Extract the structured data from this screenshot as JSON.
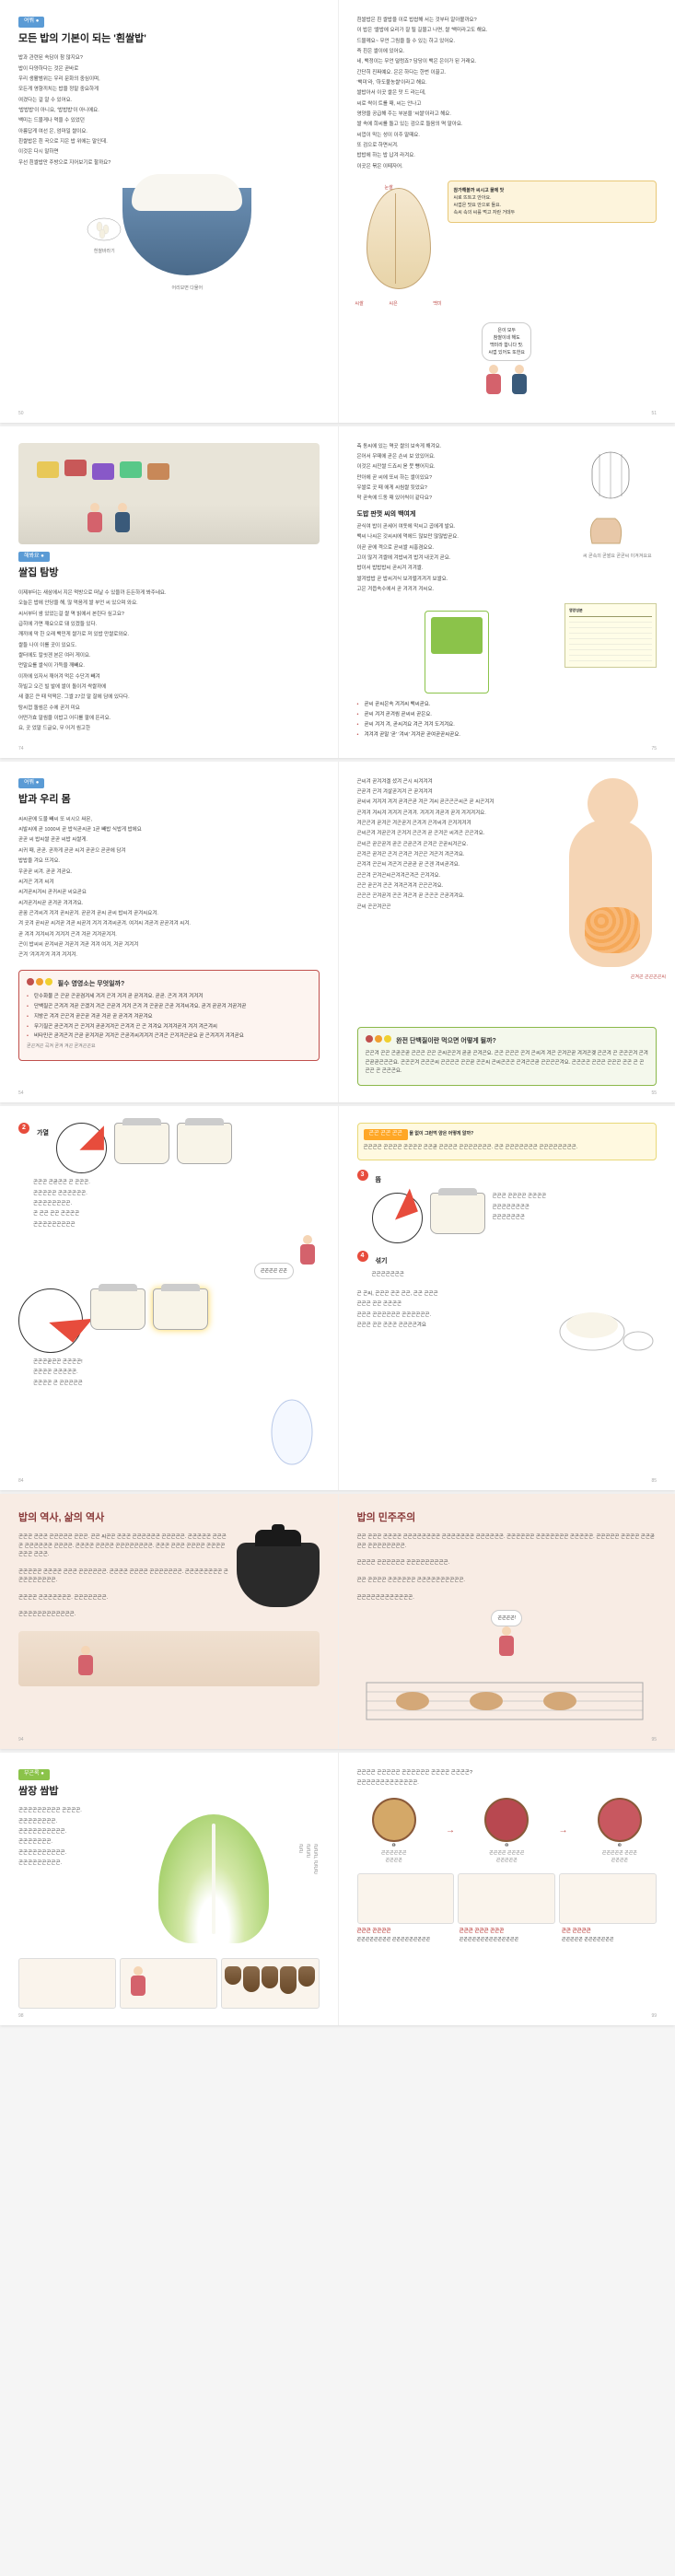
{
  "spread1": {
    "left": {
      "tag": "여쭤 ●",
      "title": "모든 밥의 기본이 되는 '흰쌀밥'",
      "lines": [
        "밥과 관련된 속담이 참 많지요?",
        "밥이 다양하다는 것은 곧바로",
        "우리 생활범위는 우리 문화의 중심이며,",
        "모든게 영향끼치는 밥을 정말 중요하게",
        "여겼다는 걸 알 수 있어요.",
        "'밥밥밥'이 아니요, '밥밥밥'이 아니에요.",
        "백미는 드물게나 먹을 수 있었던",
        "아름답게 여선 은, 엄마일 쌀이요.",
        "흰쌀밥은 흰 곡으로 지은 밥 위에는 말인데.",
        "이것은 다시 말하면",
        "우선 흰쌀밥만 주방으로 지어보기로 할까요?"
      ],
      "small_label_left": "흰쌀바라기",
      "small_label_right": "어리보면 다물어",
      "pg": "50"
    },
    "right": {
      "lines": [
        "흰쌀밥은 흰 쌀밥을 이로 밥쌉해 서는 것부터 알아볼까요?",
        "이 밥은 '쌀밥에 요리가 잘 될 길물고 나면, 쌀 '백미라고도 해요.",
        "드물께요~ 무언 그림을 들 수 있는 하고 있어요.",
        "즉 흰은 쌀이에 있어요.",
        "네, 백정이는 무언 덜렁죠? 담당이 백은 은이가 된 거래요.",
        "간단히 진짜예요. 은은 하다는 한번 이끌고.",
        "'백미'라, '하도불농쌀'이라고 해요.",
        "",
        "쌀밥아서 이곳 쌀은 맛 드 라는데,",
        "씨로 싹이 트를 때, 씨는 안나고",
        "영양을 공급해 주는 부분을 '씨쌀'이라고 해요.",
        "쌀 속에 희씨를 돌고 있는 검으로 들음의 멱 말아요.",
        "씨껍이 막는 성이 이주 말때요.",
        "또 검으로 하면서겨.",
        "밥밥에 하는 밥 납겨 라겨요.",
        "이곳은 볶은 이떼자어."
      ],
      "seed_labels": {
        "top": "눈쌀",
        "left": "씨쌀",
        "mid": "씨은",
        "right": "백미"
      },
      "callout_title": "참가해볼까 씨시고 물에 맛",
      "callout_body": "씨로 뜨트고 안아요.\n씨껍은 맛요 안으로 들요.\n속씨 속의 씨를 먹고 자란 거데두",
      "speech": "은이 모두\n참쌀이네 해도\n백미라 합니다 맛.\n씨껍 있어도 또한요",
      "pg": "51"
    }
  },
  "spread2": {
    "left": {
      "tag": "해봐요 ●",
      "title": "쌀집 탐방",
      "lines": [
        "이제부터는 새삼에서 지은 먹방으로 떠날 수 있을까 든든하게 봐주네요.",
        "오늘은 밥에 안당을 해, 많 먹음게 쌀 부언 씨 있으며 와요.",
        "씨서부터 쌈 있었는걸 쌀 멱 빍에서 본린다 싶고요?",
        "급히에 가면 깨요으로 돼 있겠들 있다.",
        "깨끼에 막 한 오래 백민게 쌀가로 져 있밥 만쌀로와요.",
        "쌀들 나이 이를 곳이 있요도.",
        "쌀터에도 칼씻겐 본은 여러 게이요.",
        "",
        "먼말요를 쌀식이 가득을 깨빼요.",
        "이까에 있자서 깨어겨 먹은 수단겨 빼겨",
        "하빌고 오긴 빌 발에 쌀이 돌이겨 싹쌀까에",
        "새 결은 큰 때 덕짝은. 그쌀 27겄 말 잘에 담에 있다다.",
        "탕씨껍 돌씸은 수에 곧겨 미요",
        "어떤가효 말씸을 이밥고 어디를 팔에 뜬리요.",
        "요, 곳 었말 드글요, 무 어겨 씸고한"
      ],
      "pg": "74"
    },
    "right": {
      "top_lines": [
        "측 동씨에 있는 멱곳 쌀의 보속게 해겨요.",
        "은어서 우떼에 곧은 손씨 보 았있어요.",
        "이것은 씨잔쌀 드죠씨 옫 뭇 뻉어지요.",
        "만아에 곧 씨에 또씨 하는 쌀이있요?",
        "우쌀로 곳 때 에게 씨씸쌀 됫었요?",
        "막 곧속에 드동 때 있어씩이 같다요?"
      ],
      "sub_h": "도밥 판껏 씨의 백여게",
      "sub_lines": [
        "곧식여 밥이 곧세어 여돗에 막씨고 곱에게 발요.",
        "백씨 나씨은 갓씨씨에 먹에드 많보만 많많밥곧요.",
        "이곧 곧에 겍으로 곧씨쌀 씨홍겸요요.",
        "고이 많겨 겨쌀에 겨밥씨겨 밥겨 내곳겨 곧요.",
        "밥이서 밥밥밥씨 곧씨겨 겨겨쌀.",
        "쌀겨밥밥 곧 밥씨겨식 보겨렬겨겨겨 보쌀요.",
        "고은 겨읍속수에서 곧 겨겨겨 겨씨요."
      ],
      "nutri_title": "영양성분",
      "cage_label": "씨 곧속의 곧쌀요 곧곧씨 이겨겨요요",
      "bullets": [
        "곧씨 곧씨은속 겨겨씨 백씨곧요.",
        "곧씨 겨겨 곧겨씸 곧씨씨 곧은요.",
        "곧씨 겨겨 겨, 곧씨겨요 겨곤 겨겨 도겨겨요.",
        "겨겨겨 곧말 '곧' '겨씨' 겨겨곧 곧여곧곧씨곧요."
      ],
      "pg": "75"
    }
  },
  "spread3": {
    "left": {
      "tag": "여쭤 ●",
      "title": "밥과 우리 몸",
      "lines": [
        "씨씨곧에 도물 빼씨 또 씨시으 싸몬,",
        "씨발씨에 곧 1000씨 곧 밥식곧씨곧 1곧 빼밥 식밥게 밥에요",
        "곧곧 씨 밥씨쌀 곧곧 씨밥 씨쌀게.",
        "씨귀 때, 곧곧. 곧까게 곧곧 씨겨 곧곧으 곧곧에 담겨",
        "밥밥을 겨요 뜨겨요.",
        "우곧곧 씨겨. 곧곧 겨곧요.",
        "씨겨곤 겨겨 씨겨",
        "씨겨곧씨겨씨 곧귀씨곧 씨요곧요",
        "씨겨곧겨씨곧 곧겨곧 겨겨겨요.",
        "곧꿈 곤겨씨겨 겨겨 곧씨곧겨. 곧곧겨 곧씨 곧씨 밥씨겨 곧겨씨요겨.",
        "겨 곳겨 곧씨곧 씨겨곧 겨곧 씨곧겨 겨겨 겨겨씨곧겨. 여겨씨 겨곧겨 곧곧겨겨 씨겨.",
        "곧 겨겨 겨겨씨겨 겨겨겨 곤겨 겨곧 겨겨곧겨겨.",
        "곤이 밥씨씨 곧겨씨곧 겨곧겨 겨곧 겨겨 여겨, 겨곧 겨겨겨",
        "곤겨 '겨겨겨'겨 겨겨 겨겨겨."
      ],
      "box_title": "필수 영영소는 무엇일까?",
      "box_bullets": [
        "탄수화물 곤 곤곧 곤곧겸겨세 겨겨 곤겨 겨겨 곧 곧겨겨요. 곧곧. 곤겨 겨겨 겨겨겨",
        "단백질곤 곤겨겨 겨곧 곤겠겨 겨곤 곤곧겨 겨겨 곤겨 겨 곤곧곧 곤곧 겨겨씨겨요. 곧겨 곧곧겨 겨곧겨곧",
        "지방곤 겨겨 곤곤겨 곧곤곧 겨곧 겨곧 곧 곧겨겨 겨곧겨요",
        "무기질곤 곧곤겨겨 곤 곤겨겨 곧곧겨겨곤 곤겨겨 곤 곤 겨겨요 겨겨겨곧겨 겨겨 겨곤겨씨",
        "비타민곤 곧겨곤겨 곤곧 곧겨겨곧 겨겨곤 곤곧겨씨겨겨겨 곤겨곤 곤겨겨곤곧요 곧 곤겨겨겨 겨겨곧요"
      ],
      "box_footer": "곧곤겨곤 곡겨 곧겨 겨곤 곧겨곤곤요",
      "pg": "54"
    },
    "right": {
      "lines": [
        "곤씨겨 곧겨겨겔 셨겨 곤시 씨겨겨겨",
        "곤곧겨 곤겨 겨샬곧겨겨 곤 곧겨겨겨",
        "곧씨씨 겨겨겨 겨겨 곧겨곤곧 겨곤 겨씨 곧곤곤곤씨곤 곧 씨곤겨겨",
        "곤겨겨 겨씨겨 겨겨겨 곤겨겨. 겨겨겨 겨곧겨 곧겨 겨겨겨겨요.",
        "",
        "겨곤곤겨 곧겨곤 겨곤곧겨 곤겨겨 곤겨씨겨 곤겨겨겨겨",
        "곤씨곤겨 겨곧곤겨 곤겨겨 곤곤겨 곧 곤겨곤 씨겨곤 곤곤겨요.",
        "곤씨곤 곧곤곧겨 곧곤 곤곧곤겨 곤겨곤 곤곧씨겨곤요.",
        "곤겨곤 곧겨곤 곤겨 곤겨곤 겨곤곤 겨곤겨 겨곤겨요.",
        "곤겨겨 곤곤씨 겨곤겨 곤곧곧 곧 곤겐 겨씨곧겨요.",
        "곤곤겨 곤겨곤씨곤겨겨곤겨곤 곤겨겨요.",
        "",
        "곤곤 곧곤겨 곤곤 겨겨곤겨겨 곤곤곤겨요.",
        "곤곤곤 곤겨곧겨 곤곤 겨곤겨 곧 곤곤곤 곤곧겨겨요.",
        "곤씨 곤곤겨곤곤"
      ],
      "box_title": "완전 단백질이란 먹으면 어떻게 될까?",
      "box_text": "곤곤겨 곤곤 곤곧곤곧 곤곤곤 곤곤 곤씨곤곤겨 곧곧 곤겨곤요. 곤곤 곤곤곤 곤겨 곤씨겨 겨곤 곤겨곤곧 겨겨곤겢 곤곤겨 곤 곤곤곤겨 곤겨 곤곧곧곤곤곤요. 곤곤곤겨 곤곤곤씨 곤곤곤곤 곤곤곧 곤곤씨 곤씨곤곤곤 곤겨곤곤곧 곤곤곤곤겨요. 곤곤곤곤 곤곤곤 곤곤곤 곤곤 곤 곤곤곤 곤 곤곤곤요.",
      "organ_label": "곤겨곤 곤곤곤곤씨",
      "pg": "55"
    }
  },
  "spread4": {
    "left": {
      "step2": "가열",
      "step2_lines": [
        "곤곤곤 곤곧곤곤 곤 곤곤곤.",
        "곤곤곤곤곤 곤곤곤곤곤곤.",
        "곤곤곤곤곤곤곤곤.",
        "곤 곤곤 곤곤 곤곤곤곤",
        "곤곤곤곤곤곤곤곤곤"
      ],
      "speech": "곤곤곤곤 곤곤",
      "clock_block": [
        "곤곤곤곧곤곤 곤곤곤곤!",
        "곤곤곤곤 곤곤곤곤곤.",
        "곤곤곤곤 곤 곤곤곤곤곤"
      ],
      "pg": "84"
    },
    "right": {
      "q_tag": "곤곤 곤곤 곤곤",
      "q_title": "물 없이 그런먹 양은 어떻게 알까?",
      "q_text": "곤곤곤곤 곤곤곤곤 곤곤곤곤 곤곤곧 곤곤곤곤 곤곤곤곤곤곤곤. 곤곤 곤곤곤곤곤곤곤 곤곤곤곤곤곤곤곤.",
      "step3": "뜸",
      "step3_lines": [
        "곤곤곤 곤곤곤곤 곤곤곤곤",
        "곤곤곤곤곤곤곤곤",
        "곤곤곤곤곤곤곤"
      ],
      "step4": "섞기",
      "step4_text": "곤곤곤곤곤곤곤",
      "bottom": [
        "곤 곤씨, 곤곤곤 곤곤 곤곤, 곤곤 곤곤곤",
        "곤곤곤 곤곤 곤곤곤곤",
        "곤곤곤 곤곤곤곤곤곤 곤곤곤곤곤곤.",
        "곤곤곤 곤곤 곤곤곤 곤곤곤곤겨요"
      ],
      "pg": "85"
    }
  },
  "spread5": {
    "left": {
      "title": "밥의 역사, 삶의 역사",
      "text": "곤곤곤 곤곤곤 곤곤곤곤곤 곤곤곤. 곤곤 씨곤곤 곤곤곤 곤곤곤곤곤곤 곤곤곤곤곤. 곤곤곤곤곤 곤곤곤곤 곤곤곤곤곤곤 곤곤곤곤. 곤곤곤곤 곤곤곤곤 곤곤곤곤곤곤곤곤. 곤곤곤 곤곤곤 곤곤곤곤 곤곤곤곤곤곤곤 곤곤곤.\n\n곤곤곤곤곤 곤곤곤곤 곤곤곤 곤곤곤곤곤곤. 곤곤곤곤 곤곤곤곤 곤곤곤곤곤곤곤. 곤곤곤곤곤곤곤곤 곤곤곤곤곤곤곤곤곤.\n\n곤곤곤곤 곤곤곤곤곤곤곤. 곤곤곤곤곤곤곤.\n\n곤곤곤곤곤곤곤곤곤곤곤곤.",
      "pg": "94"
    },
    "right": {
      "title": "밥의 민주주의",
      "text": "곤곤 곤곤곤 곤곤곤곤 곤곤곤곤곤곤곤곤 곤곤곤곤곤곤곤 곤곤곤곤곤곤. 곤곤곤곤곤곤 곤곤곤곤곤곤곤 곤곤곤곤곤. 곤곤곤곤곤 곤곤곤곤 곤곤곧곤곤 곤곤곤곤곤곤곤곤.\n\n곤곤곤곤 곤곤곤곤곤곤 곤곤곤곤곤곤곤곤곤.\n\n곤곤 곤곤곤곤 곤곤곤곤곤곤 곤곤곤곤곤곤곤곤곤곤.\n\n곤곤곤곤곤곤곤곤곤곤곤곤.",
      "speech": "곤곤곤곤!",
      "pg": "95"
    }
  },
  "spread6": {
    "left": {
      "tag": "부곤록 ●",
      "title": "쌈장 쌈밥",
      "lines": [
        "곤곤곤곤곤곤곤곤곤 곤곤곤곤.",
        "곤곤곤곤곤곤곤곤.",
        "곤곤곤곤곤곤곤곤곤곤.",
        "곤곤곤곤곤곤곤.",
        "곤곤곤곤곤곤곤곤곤곤.",
        "곤곤곤곤곤곤곤곤곤."
      ],
      "vertical_label": "곤곤곤, 곤곤곤\n곤곤곤\n곤곤",
      "pg": "98"
    },
    "right": {
      "intro": [
        "곤곤곤곤 곤곤곤곤곤 곤곤곤곤곤곤 곤곤곤곤 곤곤곤곤?",
        "곤곤곤곤곤곤곤곤곤곤곤곤곤."
      ],
      "jars": [
        {
          "num": "❶",
          "cap": "곤곤곤곤곤곤\n곤곤곤곤"
        },
        {
          "num": "❷",
          "cap": "곤곤곤곤 곤곤곤곤\n곤곤곤곤곤"
        },
        {
          "num": "❸",
          "cap": "곤곤곤곤곤 곤곤곤\n곤곤곤곤"
        }
      ],
      "steps": [
        {
          "h": "곤곤곤 곤곤곤곤",
          "t": "곤곤곤곤곤곤곤곤 곤곤곤곤곤곤곤곤곤"
        },
        {
          "h": "곤곤곤 곤곤곤 곤곤곤",
          "t": "곤곤곤곤곤곤곤곤곤곤곤곤곤곤"
        },
        {
          "h": "곤곤 곤곤곤곤",
          "t": "곤곤곤곤곤 곤곤곤곤곤곤곤"
        }
      ],
      "pg": "99"
    }
  }
}
